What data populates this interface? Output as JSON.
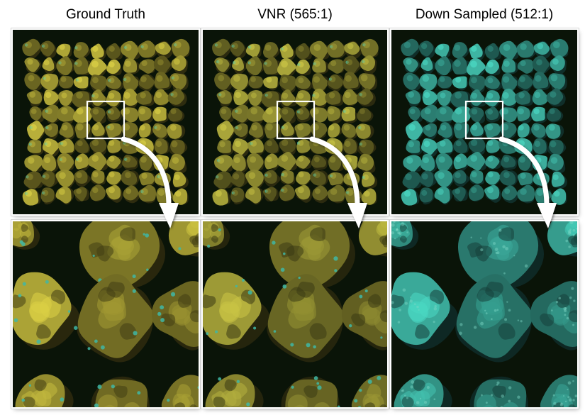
{
  "columns": [
    {
      "title": "Ground Truth",
      "tint": "#b9b03a"
    },
    {
      "title": "VNR (565:1)",
      "tint": "#aaa63a"
    },
    {
      "title": "Down Sampled (512:1)",
      "tint": "#3fb7a5"
    }
  ],
  "colors": {
    "background": "#0a1408",
    "inset_border": "#ffffff",
    "gt_tint": "#b9b03a",
    "vnr_tint": "#aaa63a",
    "ds_tint": "#3fb7a5"
  }
}
